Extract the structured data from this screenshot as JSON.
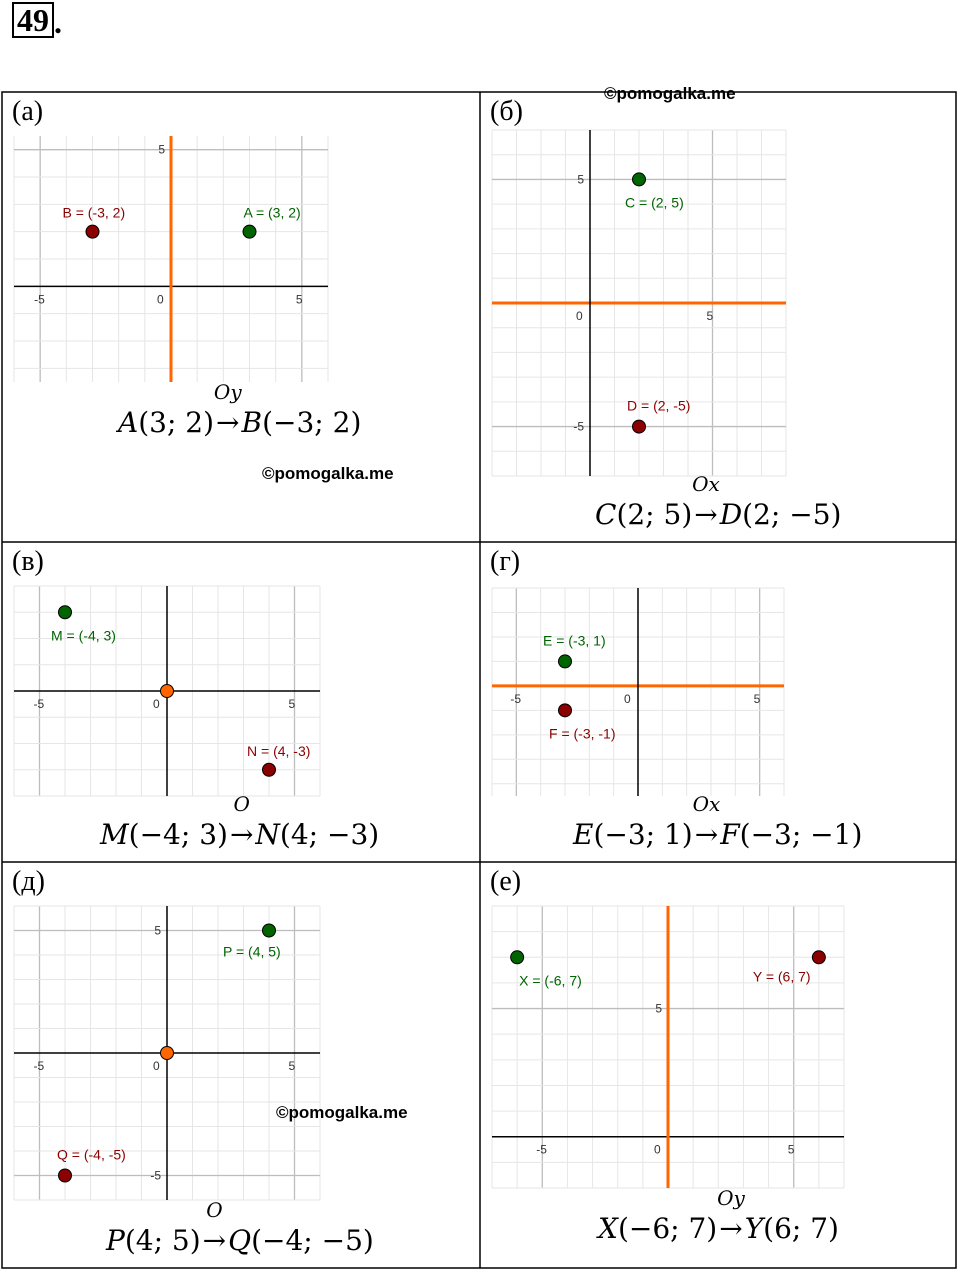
{
  "problem_number": "49",
  "problem_number_suffix": ".",
  "watermark": "©pomogalka.me",
  "chart_data": [
    {
      "id": "a",
      "panel_label": "(а)",
      "type": "scatter",
      "xlim": [
        -6,
        6
      ],
      "ylim": [
        -3.5,
        5.5
      ],
      "ticks_x": [
        -5,
        5
      ],
      "ticks_y": [
        5
      ],
      "mirror": "y-axis",
      "points": [
        {
          "label": "A = (3, 2)",
          "x": 3,
          "y": 2,
          "color": "#006400"
        },
        {
          "label": "B = (-3, 2)",
          "x": -3,
          "y": 2,
          "color": "#8b0000"
        }
      ],
      "formula": {
        "from_name": "A",
        "from_coords": "(3; 2)",
        "op": "Oy",
        "to_name": "B",
        "to_coords": "(−3; 2)"
      }
    },
    {
      "id": "b",
      "panel_label": "(б)",
      "type": "scatter",
      "xlim": [
        -4,
        8
      ],
      "ylim": [
        -7,
        7
      ],
      "ticks_x": [
        5
      ],
      "ticks_y": [
        5,
        -5
      ],
      "mirror": "x-axis",
      "points": [
        {
          "label": "C = (2, 5)",
          "x": 2,
          "y": 5,
          "color": "#006400"
        },
        {
          "label": "D = (2, -5)",
          "x": 2,
          "y": -5,
          "color": "#8b0000"
        }
      ],
      "formula": {
        "from_name": "C",
        "from_coords": "(2; 5)",
        "op": "Ox",
        "to_name": "D",
        "to_coords": "(2; −5)"
      }
    },
    {
      "id": "v",
      "panel_label": "(в)",
      "type": "scatter",
      "xlim": [
        -6,
        6
      ],
      "ylim": [
        -4,
        4
      ],
      "ticks_x": [
        -5,
        5
      ],
      "ticks_y": [],
      "mirror": "origin",
      "points": [
        {
          "label": "M = (-4, 3)",
          "x": -4,
          "y": 3,
          "color": "#006400"
        },
        {
          "label": "N = (4, -3)",
          "x": 4,
          "y": -3,
          "color": "#8b0000"
        }
      ],
      "formula": {
        "from_name": "M",
        "from_coords": "(−4; 3)",
        "op": "O",
        "to_name": "N",
        "to_coords": "(4; −3)"
      }
    },
    {
      "id": "g",
      "panel_label": "(г)",
      "type": "scatter",
      "xlim": [
        -6,
        6
      ],
      "ylim": [
        -4.5,
        4
      ],
      "ticks_x": [
        -5,
        5
      ],
      "ticks_y": [],
      "mirror": "x-axis",
      "points": [
        {
          "label": "E = (-3, 1)",
          "x": -3,
          "y": 1,
          "color": "#006400"
        },
        {
          "label": "F = (-3, -1)",
          "x": -3,
          "y": -1,
          "color": "#8b0000"
        }
      ],
      "formula": {
        "from_name": "E",
        "from_coords": "(−3; 1)",
        "op": "Ox",
        "to_name": "F",
        "to_coords": "(−3; −1)"
      }
    },
    {
      "id": "d",
      "panel_label": "(д)",
      "type": "scatter",
      "xlim": [
        -6,
        6
      ],
      "ylim": [
        -6,
        6
      ],
      "ticks_x": [
        -5,
        5
      ],
      "ticks_y": [
        5,
        -5
      ],
      "mirror": "origin",
      "points": [
        {
          "label": "P = (4, 5)",
          "x": 4,
          "y": 5,
          "color": "#006400"
        },
        {
          "label": "Q = (-4, -5)",
          "x": -4,
          "y": -5,
          "color": "#8b0000"
        }
      ],
      "formula": {
        "from_name": "P",
        "from_coords": "(4; 5)",
        "op": "O",
        "to_name": "Q",
        "to_coords": "(−4; −5)"
      }
    },
    {
      "id": "e",
      "panel_label": "(е)",
      "type": "scatter",
      "xlim": [
        -7,
        7
      ],
      "ylim": [
        -2,
        9
      ],
      "ticks_x": [
        -5,
        5
      ],
      "ticks_y": [
        5
      ],
      "mirror": "y-axis",
      "points": [
        {
          "label": "X = (-6, 7)",
          "x": -6,
          "y": 7,
          "color": "#006400"
        },
        {
          "label": "Y = (6, 7)",
          "x": 6,
          "y": 7,
          "color": "#8b0000"
        }
      ],
      "formula": {
        "from_name": "X",
        "from_coords": "(−6; 7)",
        "op": "Oy",
        "to_name": "Y",
        "to_coords": "(6; 7)"
      }
    }
  ],
  "colors": {
    "mirror": "#ff6600",
    "axis": "#000000",
    "grid_minor": "#e6e6e6",
    "grid_major": "#bdbdbd",
    "label_green": "#006400",
    "label_red": "#8b0000"
  }
}
